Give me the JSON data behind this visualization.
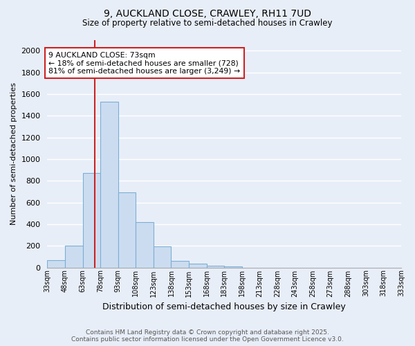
{
  "title1": "9, AUCKLAND CLOSE, CRAWLEY, RH11 7UD",
  "title2": "Size of property relative to semi-detached houses in Crawley",
  "xlabel": "Distribution of semi-detached houses by size in Crawley",
  "ylabel": "Number of semi-detached properties",
  "bins": [
    33,
    48,
    63,
    78,
    93,
    108,
    123,
    138,
    153,
    168,
    183,
    198,
    213,
    228,
    243,
    258,
    273,
    288,
    303,
    318,
    333
  ],
  "bin_labels": [
    "33sqm",
    "48sqm",
    "63sqm",
    "78sqm",
    "93sqm",
    "108sqm",
    "123sqm",
    "138sqm",
    "153sqm",
    "168sqm",
    "183sqm",
    "198sqm",
    "213sqm",
    "228sqm",
    "243sqm",
    "258sqm",
    "273sqm",
    "288sqm",
    "303sqm",
    "318sqm",
    "333sqm"
  ],
  "counts": [
    65,
    200,
    870,
    1530,
    690,
    415,
    195,
    60,
    35,
    15,
    10,
    0,
    0,
    0,
    0,
    0,
    0,
    0,
    0,
    0
  ],
  "property_size": 73,
  "annotation_line1": "9 AUCKLAND CLOSE: 73sqm",
  "annotation_line2": "← 18% of semi-detached houses are smaller (728)",
  "annotation_line3": "81% of semi-detached houses are larger (3,249) →",
  "bar_color": "#ccdcf0",
  "bar_edge_color": "#7bafd4",
  "vline_color": "#cc2222",
  "annotation_box_color": "#ffffff",
  "annotation_box_edge": "#cc2222",
  "ylim": [
    0,
    2100
  ],
  "yticks": [
    0,
    200,
    400,
    600,
    800,
    1000,
    1200,
    1400,
    1600,
    1800,
    2000
  ],
  "bg_color": "#e8eef8",
  "grid_color": "#ffffff",
  "footer": "Contains HM Land Registry data © Crown copyright and database right 2025.\nContains public sector information licensed under the Open Government Licence v3.0."
}
